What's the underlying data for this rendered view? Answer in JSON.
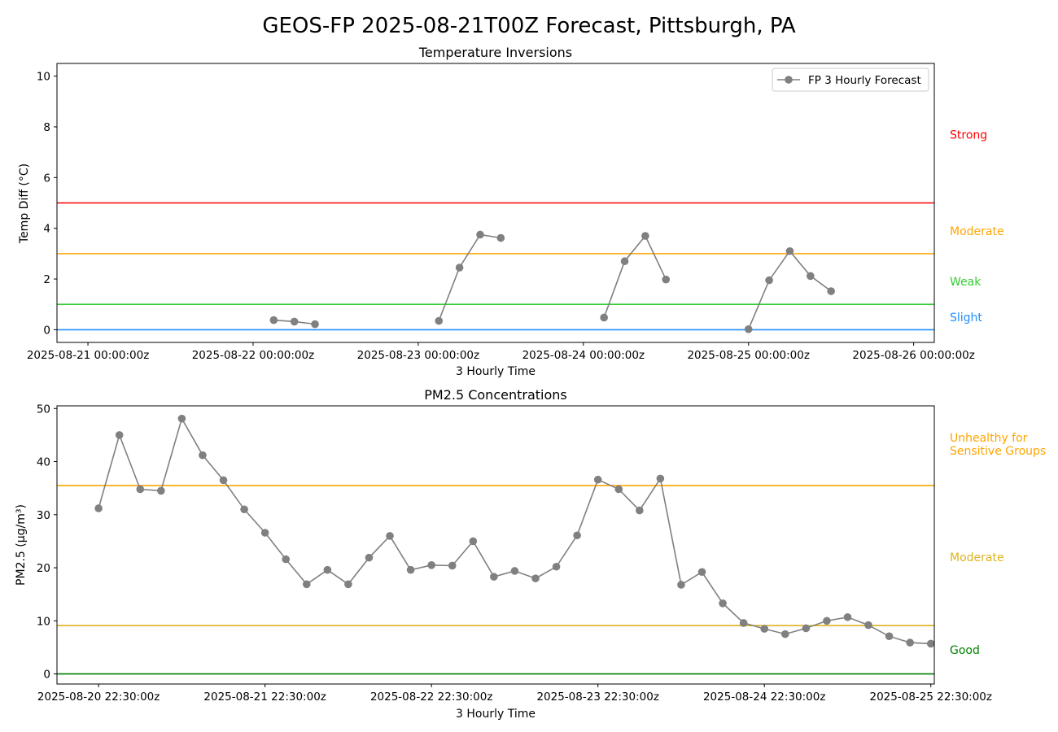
{
  "suptitle": "GEOS-FP 2025-08-21T00Z Forecast, Pittsburgh, PA",
  "chart_data": [
    {
      "type": "line",
      "title": "Temperature Inversions",
      "xlabel": "3 Hourly Time",
      "ylabel": "Temp Diff (°C)",
      "ylim": [
        -0.5,
        10.5
      ],
      "yticks": [
        0,
        2,
        4,
        6,
        8,
        10
      ],
      "xtick_labels": [
        "2025-08-21 00:00:00z",
        "2025-08-22 00:00:00z",
        "2025-08-23 00:00:00z",
        "2025-08-24 00:00:00z",
        "2025-08-25 00:00:00z",
        "2025-08-26 00:00:00z"
      ],
      "x_unit": "hours since 2025-08-21 00:00",
      "xlim_hours": [
        -4.5,
        123
      ],
      "legend": {
        "position": "top-right",
        "entries": [
          "FP 3 Hourly Forecast"
        ]
      },
      "series": [
        {
          "name": "FP 3 Hourly Forecast",
          "color": "#808080",
          "segments": [
            [
              [
                27,
                0.38
              ],
              [
                30,
                0.32
              ],
              [
                33,
                0.22
              ]
            ],
            [
              [
                51,
                0.35
              ],
              [
                54,
                2.45
              ],
              [
                57,
                3.75
              ],
              [
                60,
                3.62
              ]
            ],
            [
              [
                75,
                0.48
              ],
              [
                78,
                2.7
              ],
              [
                81,
                3.7
              ],
              [
                84,
                1.98
              ]
            ],
            [
              [
                96,
                0.02
              ],
              [
                99,
                1.95
              ],
              [
                102,
                3.1
              ],
              [
                105,
                2.12
              ],
              [
                108,
                1.52
              ]
            ]
          ]
        }
      ],
      "thresholds": [
        {
          "value": 0,
          "color": "#1f8fff"
        },
        {
          "value": 1,
          "color": "#33cc33"
        },
        {
          "value": 3,
          "color": "#ffa500"
        },
        {
          "value": 5,
          "color": "#ff0000"
        }
      ],
      "category_labels": [
        {
          "text": [
            "Strong"
          ],
          "y": 7.7,
          "color": "#ff0000"
        },
        {
          "text": [
            "Moderate"
          ],
          "y": 3.9,
          "color": "#ffa500"
        },
        {
          "text": [
            "Weak"
          ],
          "y": 1.9,
          "color": "#33cc33"
        },
        {
          "text": [
            "Slight"
          ],
          "y": 0.5,
          "color": "#1f8fff"
        }
      ]
    },
    {
      "type": "line",
      "title": "PM2.5 Concentrations",
      "xlabel": "3 Hourly Time",
      "ylabel": "PM2.5 (µg/m³)",
      "ylim": [
        -1.9,
        50.5
      ],
      "yticks": [
        0,
        10,
        20,
        30,
        40,
        50
      ],
      "xtick_labels": [
        "2025-08-20 22:30:00z",
        "2025-08-21 22:30:00z",
        "2025-08-22 22:30:00z",
        "2025-08-23 22:30:00z",
        "2025-08-24 22:30:00z",
        "2025-08-25 22:30:00z"
      ],
      "x_unit": "hours since 2025-08-20 22:30",
      "xlim_hours": [
        -6,
        120.5
      ],
      "series": [
        {
          "name": "",
          "color": "#808080",
          "hours": [
            0,
            3,
            6,
            9,
            12,
            15,
            18,
            21,
            24,
            27,
            30,
            33,
            36,
            39,
            42,
            45,
            48,
            51,
            54,
            57,
            60,
            63,
            66,
            69,
            72,
            75,
            78,
            81,
            84,
            87,
            90,
            93,
            96,
            99,
            102,
            105,
            108,
            111,
            114,
            117,
            120
          ],
          "values": [
            31.2,
            45.0,
            34.8,
            34.5,
            48.1,
            41.2,
            36.5,
            31.0,
            26.6,
            21.6,
            16.9,
            19.6,
            16.9,
            21.9,
            26.0,
            19.6,
            20.5,
            20.4,
            25.0,
            18.3,
            19.4,
            18.0,
            20.2,
            26.1,
            36.6,
            34.8,
            30.8,
            36.8,
            16.8,
            19.2,
            13.3,
            9.6,
            8.5,
            7.5,
            8.6,
            10.0,
            10.7,
            9.2,
            7.1,
            5.9,
            5.7
          ]
        }
      ],
      "thresholds": [
        {
          "value": 0,
          "color": "#008000"
        },
        {
          "value": 9.1,
          "color": "#ddb41e"
        },
        {
          "value": 35.5,
          "color": "#ffa500"
        }
      ],
      "category_labels": [
        {
          "text": [
            "Unhealthy for",
            "Sensitive Groups"
          ],
          "y": 44.5,
          "color": "#ffa500"
        },
        {
          "text": [
            "Moderate"
          ],
          "y": 22.0,
          "color": "#ddb41e"
        },
        {
          "text": [
            "Good"
          ],
          "y": 4.5,
          "color": "#008000"
        }
      ]
    }
  ]
}
